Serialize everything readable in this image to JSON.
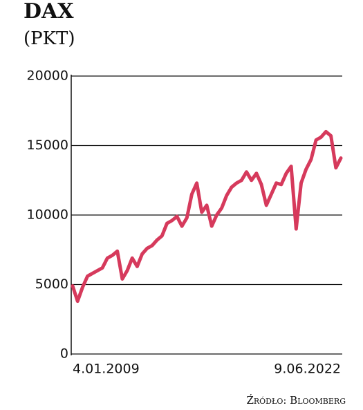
{
  "chart_data": {
    "type": "line",
    "title": "DAX",
    "subtitle": "(PKT)",
    "source": "Źródło: Bloomberg",
    "categories": [
      "4.01.2009",
      null,
      null,
      null,
      null,
      null,
      null,
      null,
      null,
      null,
      null,
      null,
      null,
      null,
      null,
      null,
      null,
      null,
      null,
      null,
      null,
      null,
      null,
      null,
      null,
      null,
      null,
      null,
      null,
      null,
      null,
      null,
      null,
      null,
      null,
      null,
      null,
      null,
      null,
      null,
      null,
      null,
      null,
      null,
      null,
      null,
      null,
      null,
      null,
      null,
      null,
      null,
      null,
      null,
      "9.06.2022"
    ],
    "values": [
      4900,
      3800,
      4800,
      5600,
      5800,
      6000,
      6200,
      6900,
      7100,
      7400,
      5400,
      6000,
      6900,
      6300,
      7200,
      7600,
      7800,
      8200,
      8500,
      9400,
      9600,
      9900,
      9200,
      9800,
      11500,
      12300,
      10200,
      10700,
      9200,
      10000,
      10500,
      11400,
      12000,
      12300,
      12500,
      13100,
      12500,
      13000,
      12200,
      10700,
      11500,
      12300,
      12200,
      13000,
      13500,
      9000,
      12300,
      13300,
      14000,
      15400,
      15600,
      16000,
      15700,
      13400,
      14100
    ],
    "color": "#d63a5c",
    "ylim": [
      0,
      20000
    ],
    "yticks": [
      0,
      5000,
      10000,
      15000,
      20000
    ],
    "grid": true
  }
}
